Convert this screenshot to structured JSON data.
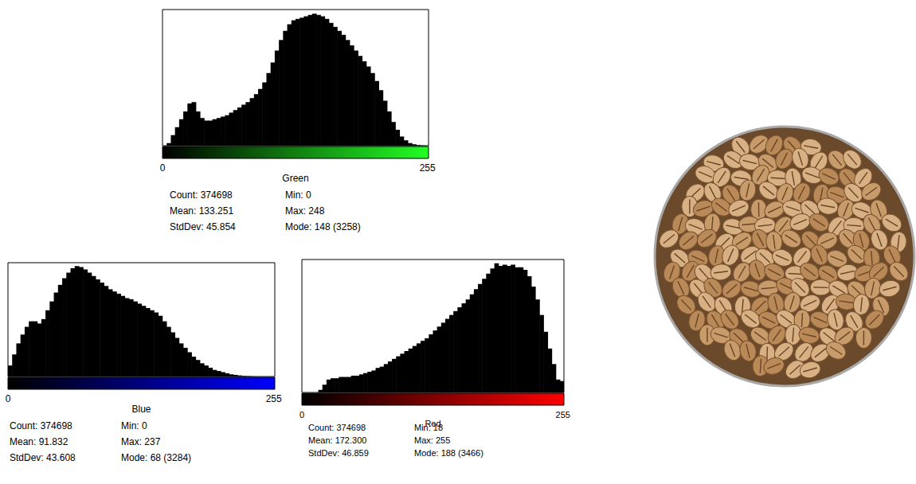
{
  "chart_data": [
    {
      "type": "histogram",
      "title": "Green",
      "color": "#000000",
      "bins": [
        0,
        4,
        8,
        12,
        16,
        20,
        24,
        28,
        32,
        36,
        40,
        44,
        48,
        52,
        56,
        60,
        64,
        68,
        72,
        76,
        80,
        84,
        88,
        92,
        96,
        100,
        104,
        108,
        112,
        116,
        120,
        124,
        128,
        132,
        136,
        140,
        144,
        148,
        152,
        156,
        160,
        164,
        168,
        172,
        176,
        180,
        184,
        188,
        192,
        196,
        200,
        204,
        208,
        212,
        216,
        220,
        224,
        228,
        232,
        236,
        240,
        244,
        248,
        252,
        256
      ],
      "values": [
        3,
        256,
        1024,
        1792,
        2560,
        3328,
        4096,
        4224,
        3328,
        2688,
        2432,
        2432,
        2560,
        2688,
        2816,
        2944,
        3200,
        3456,
        3712,
        3968,
        4224,
        4608,
        4992,
        5504,
        6144,
        7040,
        8064,
        9216,
        10240,
        11136,
        11776,
        12160,
        12288,
        12416,
        12544,
        12672,
        12800,
        12672,
        12544,
        12288,
        11904,
        11520,
        11136,
        10752,
        10240,
        9728,
        9216,
        8704,
        8192,
        7680,
        7040,
        6272,
        5376,
        4352,
        3328,
        2304,
        1536,
        896,
        512,
        256,
        128,
        51,
        12,
        0
      ],
      "xlim": [
        0,
        256
      ],
      "xticks": [
        0,
        255
      ],
      "ylim": [
        0,
        13200
      ],
      "tick_labels": "x",
      "grid": false,
      "stats": [
        "Count: 374698",
        "Min: 0",
        "Mean: 133.251",
        "Max: 248",
        "StdDev: 45.854",
        "Mode: 148 (3258)"
      ]
    },
    {
      "type": "histogram",
      "title": "Blue",
      "color": "#000000",
      "bins": [
        0,
        4,
        8,
        12,
        16,
        20,
        24,
        28,
        32,
        36,
        40,
        44,
        48,
        52,
        56,
        60,
        64,
        68,
        72,
        76,
        80,
        84,
        88,
        92,
        96,
        100,
        104,
        108,
        112,
        116,
        120,
        124,
        128,
        132,
        136,
        140,
        144,
        148,
        152,
        156,
        160,
        164,
        168,
        172,
        176,
        180,
        184,
        188,
        192,
        196,
        200,
        204,
        208,
        212,
        216,
        220,
        224,
        228,
        232,
        236,
        240,
        244,
        248,
        252,
        256
      ],
      "values": [
        1310,
        2620,
        3930,
        4978,
        5895,
        6550,
        6550,
        6288,
        6812,
        7860,
        8908,
        9956,
        10873,
        11659,
        12314,
        12838,
        13100,
        12969,
        12707,
        12314,
        11921,
        11528,
        11135,
        10742,
        10349,
        10087,
        9825,
        9563,
        9301,
        9170,
        8908,
        8646,
        8384,
        8122,
        7860,
        7598,
        7205,
        6550,
        5895,
        5240,
        4585,
        3930,
        3406,
        2882,
        2358,
        1965,
        1572,
        1310,
        1048,
        786,
        655,
        524,
        393,
        262,
        197,
        131,
        79,
        52,
        26,
        8,
        0,
        0,
        0,
        0
      ],
      "xlim": [
        0,
        256
      ],
      "xticks": [
        0,
        255
      ],
      "ylim": [
        0,
        13500
      ],
      "tick_labels": "x",
      "grid": false,
      "stats": [
        "Count: 374698",
        "Min: 0",
        "Mean: 91.832",
        "Max: 237",
        "StdDev: 43.608",
        "Mode: 68 (3284)"
      ]
    },
    {
      "type": "histogram",
      "title": "Red",
      "color": "#000000",
      "bins": [
        0,
        4,
        8,
        12,
        16,
        20,
        24,
        28,
        32,
        36,
        40,
        44,
        48,
        52,
        56,
        60,
        64,
        68,
        72,
        76,
        80,
        84,
        88,
        92,
        96,
        100,
        104,
        108,
        112,
        116,
        120,
        124,
        128,
        132,
        136,
        140,
        144,
        148,
        152,
        156,
        160,
        164,
        168,
        172,
        176,
        180,
        184,
        188,
        192,
        196,
        200,
        204,
        208,
        212,
        216,
        220,
        224,
        228,
        232,
        236,
        240,
        244,
        248,
        252,
        256
      ],
      "values": [
        0,
        0,
        0,
        0,
        272,
        816,
        1360,
        1496,
        1496,
        1632,
        1632,
        1632,
        1768,
        1768,
        1904,
        2040,
        2176,
        2312,
        2584,
        2720,
        2992,
        3264,
        3536,
        3808,
        4080,
        4352,
        4624,
        4896,
        5168,
        5440,
        5712,
        6120,
        6528,
        6936,
        7344,
        7752,
        8160,
        8568,
        8976,
        9384,
        9792,
        10336,
        10880,
        11424,
        11968,
        12512,
        13056,
        13600,
        13328,
        13464,
        13328,
        13464,
        13192,
        13192,
        12920,
        12240,
        11152,
        9792,
        8160,
        6392,
        4624,
        2992,
        1360,
        1200
      ],
      "xlim": [
        0,
        256
      ],
      "xticks": [
        0,
        255
      ],
      "ylim": [
        0,
        14000
      ],
      "tick_labels": "x",
      "grid": false,
      "stats": [
        "Count: 374698",
        "Min: 18",
        "Mean: 172.300",
        "Max: 255",
        "StdDev: 46.859",
        "Mode: 188 (3466)"
      ]
    }
  ]
}
